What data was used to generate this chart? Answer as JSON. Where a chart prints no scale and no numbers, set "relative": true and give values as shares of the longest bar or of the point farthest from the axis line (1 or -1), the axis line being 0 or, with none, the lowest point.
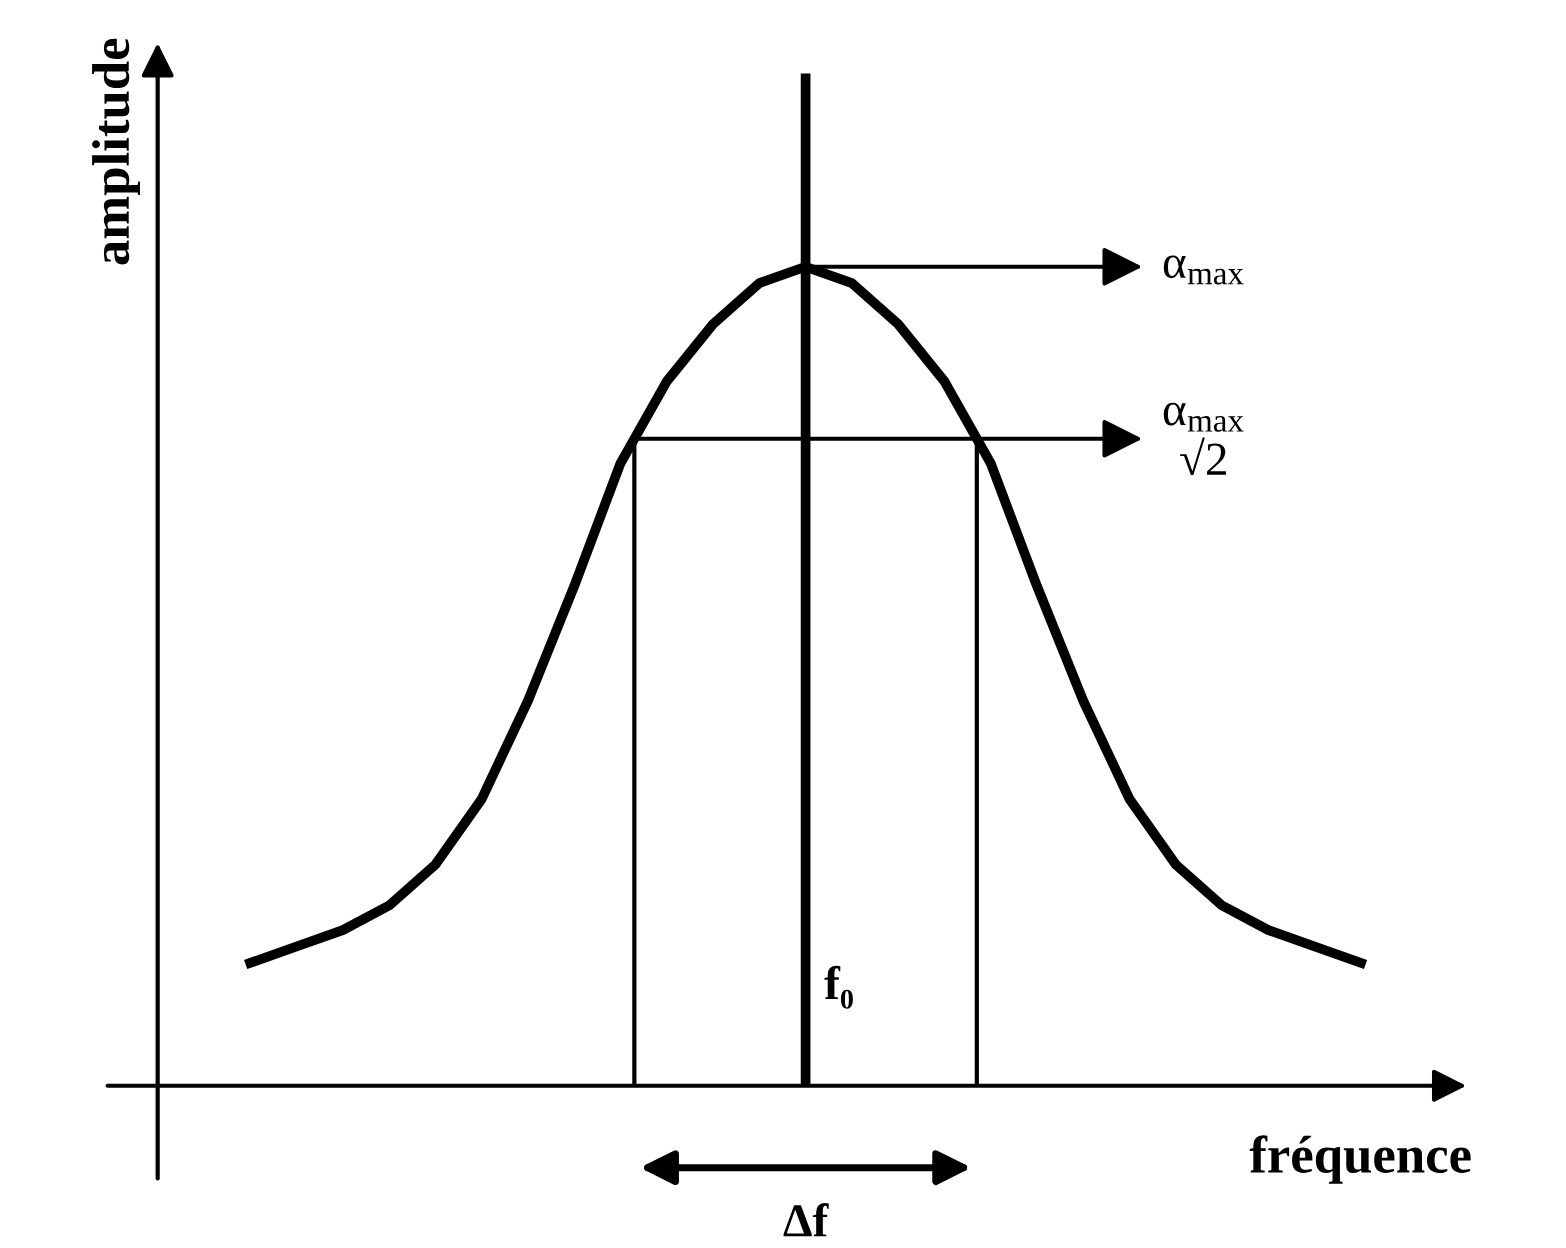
{
  "chart_data": {
    "type": "line",
    "relative": true,
    "xlabel": "fréquence",
    "ylabel": "amplitude",
    "categories": [
      null,
      null,
      null,
      null,
      null,
      null,
      null,
      null,
      null,
      null,
      null,
      null,
      null,
      null,
      null,
      null,
      null,
      null,
      null,
      null,
      null,
      null,
      null,
      null,
      null
    ],
    "series": [
      {
        "color": "#000000",
        "values": [
          0.15,
          0.17,
          0.19,
          0.22,
          0.27,
          0.35,
          0.47,
          0.61,
          0.76,
          0.86,
          0.93,
          0.98,
          1.0,
          0.98,
          0.93,
          0.86,
          0.76,
          0.61,
          0.47,
          0.35,
          0.27,
          0.22,
          0.19,
          0.17,
          0.15
        ]
      }
    ],
    "ref_lines": [
      {
        "axis": "y",
        "value": 1.0,
        "label": "α$_{max}$",
        "color": "#000000"
      },
      {
        "axis": "y",
        "value": 0.79,
        "label": "α$_{max}$\n√2",
        "color": "#000000"
      }
    ],
    "annotations": [
      "f₀",
      "Δf"
    ],
    "legend": false,
    "marker": "none",
    "line_style": "solid"
  }
}
